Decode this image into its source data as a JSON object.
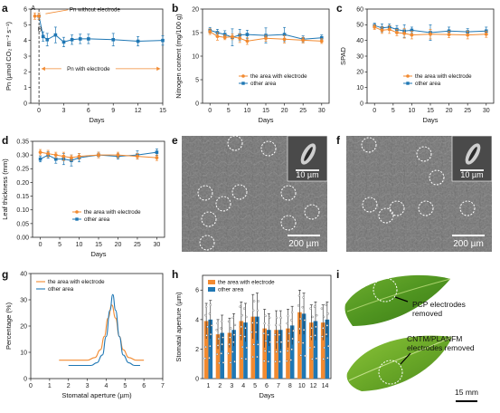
{
  "panels": {
    "a": "a",
    "b": "b",
    "c": "c",
    "d": "d",
    "e": "e",
    "f": "f",
    "g": "g",
    "h": "h",
    "i": "i"
  },
  "colors": {
    "orange": "#f28a30",
    "blue": "#1f77b4"
  },
  "micro": {
    "inset_scale": "10 µm",
    "main_scale": "200 µm"
  },
  "leaf_photos": {
    "top_label_line1": "PCP electrodes",
    "top_label_line2": "removed",
    "bottom_label_line1": "CNTM/PLANFM",
    "bottom_label_line2": "electrodes removed",
    "scale": "15 mm"
  },
  "chart_data": [
    {
      "id": "a",
      "type": "line",
      "xlabel": "Days",
      "ylabel": "Pn (µmol CO₂ m⁻² s⁻¹)",
      "xlim": [
        -1,
        15
      ],
      "ylim": [
        0,
        6
      ],
      "xticks": [
        0,
        3,
        6,
        9,
        12,
        15
      ],
      "yticks": [
        0,
        1,
        2,
        3,
        4,
        5,
        6
      ],
      "point_labels": [
        "A",
        "B"
      ],
      "annotation_top": "Pn without electrode",
      "annotation_bottom": "Pn with electrode",
      "series": [
        {
          "x": [
            -0.5,
            0
          ],
          "y": [
            5.55,
            5.55
          ],
          "color": "#f28a30",
          "err": [
            0.2,
            0.2
          ]
        },
        {
          "x": [
            0,
            0.5,
            1,
            2,
            3,
            4,
            5,
            6,
            9,
            12,
            15
          ],
          "y": [
            5.55,
            4.25,
            4.05,
            4.35,
            3.9,
            4.05,
            4.1,
            4.1,
            4.05,
            3.95,
            4.0
          ],
          "color": "#1f77b4",
          "err": [
            0.2,
            0.3,
            0.4,
            0.5,
            0.3,
            0.3,
            0.3,
            0.3,
            0.4,
            0.3,
            0.3
          ]
        }
      ]
    },
    {
      "id": "b",
      "type": "line",
      "xlabel": "Days",
      "ylabel": "Nitrogen content (mg/100 g)",
      "xlim": [
        -2,
        32
      ],
      "ylim": [
        0,
        20
      ],
      "xticks": [
        0,
        5,
        10,
        15,
        20,
        25,
        30
      ],
      "yticks": [
        0,
        5,
        10,
        15,
        20
      ],
      "series": [
        {
          "name": "the area with electrode",
          "color": "#f28a30",
          "x": [
            0,
            2,
            4,
            6,
            8,
            10,
            15,
            20,
            25,
            30
          ],
          "y": [
            15.2,
            14.2,
            14.0,
            14.1,
            13.8,
            13.2,
            13.8,
            13.6,
            13.4,
            13.2
          ],
          "err": [
            0.6,
            0.8,
            0.5,
            0.6,
            0.9,
            0.7,
            0.6,
            0.8,
            0.6,
            0.5
          ]
        },
        {
          "name": "other area",
          "color": "#1f77b4",
          "x": [
            0,
            2,
            4,
            6,
            8,
            10,
            15,
            20,
            25,
            30
          ],
          "y": [
            15.5,
            15.0,
            14.6,
            14.0,
            14.5,
            14.6,
            14.4,
            14.6,
            13.6,
            13.9
          ],
          "err": [
            0.6,
            0.7,
            0.8,
            1.8,
            1.2,
            0.9,
            1.6,
            1.5,
            0.7,
            0.6
          ]
        }
      ]
    },
    {
      "id": "c",
      "type": "line",
      "xlabel": "Days",
      "ylabel": "SPAD",
      "xlim": [
        -2,
        32
      ],
      "ylim": [
        0,
        60
      ],
      "xticks": [
        0,
        5,
        10,
        15,
        20,
        25,
        30
      ],
      "yticks": [
        0,
        10,
        20,
        30,
        40,
        50,
        60
      ],
      "series": [
        {
          "name": "the area with electrode",
          "color": "#f28a30",
          "x": [
            0,
            2,
            4,
            6,
            8,
            10,
            15,
            20,
            25,
            30
          ],
          "y": [
            48.5,
            46.5,
            47.0,
            45.0,
            44.5,
            43.5,
            44.0,
            43.8,
            43.5,
            44.0
          ],
          "err": [
            1.5,
            2.0,
            2.5,
            2.0,
            3.0,
            2.5,
            3.0,
            2.0,
            2.5,
            2.0
          ]
        },
        {
          "name": "other area",
          "color": "#1f77b4",
          "x": [
            0,
            2,
            4,
            6,
            8,
            10,
            15,
            20,
            25,
            30
          ],
          "y": [
            49.5,
            48.0,
            48.5,
            47.0,
            46.0,
            46.5,
            45.0,
            46.0,
            45.5,
            46.0
          ],
          "err": [
            1.5,
            2.5,
            2.0,
            2.5,
            4.0,
            2.0,
            5.0,
            2.5,
            2.0,
            2.5
          ]
        }
      ]
    },
    {
      "id": "d",
      "type": "line",
      "xlabel": "Days",
      "ylabel": "Leaf thickness (mm)",
      "xlim": [
        -2,
        32
      ],
      "ylim": [
        0,
        0.35
      ],
      "xticks": [
        0,
        5,
        10,
        15,
        20,
        25,
        30
      ],
      "yticks": [
        0.0,
        0.05,
        0.1,
        0.15,
        0.2,
        0.25,
        0.3,
        0.35
      ],
      "ytick_labels": [
        "0.00",
        "0.05",
        "0.10",
        "0.15",
        "0.20",
        "0.25",
        "0.30",
        "0.35"
      ],
      "series": [
        {
          "name": "the area with electrode",
          "color": "#f28a30",
          "x": [
            0,
            2,
            4,
            6,
            8,
            10,
            15,
            20,
            25,
            30
          ],
          "y": [
            0.31,
            0.305,
            0.3,
            0.295,
            0.29,
            0.295,
            0.3,
            0.3,
            0.295,
            0.29
          ],
          "err": [
            0.01,
            0.012,
            0.01,
            0.015,
            0.01,
            0.01,
            0.01,
            0.01,
            0.01,
            0.01
          ]
        },
        {
          "name": "other area",
          "color": "#1f77b4",
          "x": [
            0,
            2,
            4,
            6,
            8,
            10,
            15,
            20,
            25,
            30
          ],
          "y": [
            0.285,
            0.3,
            0.285,
            0.285,
            0.28,
            0.29,
            0.3,
            0.295,
            0.3,
            0.31
          ],
          "err": [
            0.01,
            0.012,
            0.015,
            0.02,
            0.02,
            0.015,
            0.01,
            0.01,
            0.015,
            0.012
          ]
        }
      ]
    },
    {
      "id": "g",
      "type": "line",
      "xlabel": "Stomatal aperture (µm)",
      "ylabel": "Percentage (%)",
      "xlim": [
        0,
        7
      ],
      "ylim": [
        0,
        40
      ],
      "xticks": [
        0,
        1,
        2,
        3,
        4,
        5,
        6,
        7
      ],
      "yticks": [
        0,
        10,
        20,
        30,
        40
      ],
      "series": [
        {
          "name": "the area with electrode",
          "color": "#f28a30",
          "x": [
            1.5,
            3.0,
            3.4,
            3.7,
            3.9,
            4.1,
            4.3,
            4.5,
            4.7,
            4.9,
            5.2,
            5.6,
            6.0
          ],
          "y": [
            7,
            7,
            8,
            11,
            16,
            23,
            28,
            23,
            16,
            11,
            8,
            7,
            7
          ]
        },
        {
          "name": "other area",
          "color": "#1f77b4",
          "x": [
            2.0,
            3.2,
            3.5,
            3.8,
            4.0,
            4.2,
            4.35,
            4.5,
            4.7,
            4.9,
            5.2,
            5.5,
            5.8
          ],
          "y": [
            5,
            5,
            6,
            9,
            16,
            26,
            32,
            26,
            16,
            9,
            6,
            5,
            5
          ]
        }
      ]
    },
    {
      "id": "h",
      "type": "bar",
      "xlabel": "Days",
      "ylabel": "Stomatal aperture (µm)",
      "ylim": [
        0,
        7
      ],
      "yticks": [
        0,
        2,
        4,
        6
      ],
      "categories": [
        "1",
        "2",
        "3",
        "4",
        "5",
        "6",
        "7",
        "8",
        "10",
        "12",
        "14"
      ],
      "series": [
        {
          "name": "the area with electrode",
          "color": "#f28a30",
          "values": [
            3.9,
            3.0,
            3.1,
            3.9,
            4.2,
            3.4,
            3.3,
            3.4,
            4.5,
            3.8,
            3.8
          ],
          "err": [
            1.2,
            1.0,
            1.0,
            1.3,
            1.5,
            1.3,
            1.3,
            1.3,
            1.5,
            1.2,
            1.2
          ]
        },
        {
          "name": "other area",
          "color": "#1f77b4",
          "values": [
            4.0,
            3.1,
            3.3,
            3.8,
            4.2,
            3.3,
            3.3,
            3.6,
            4.4,
            3.9,
            4.0
          ],
          "err": [
            1.3,
            1.2,
            1.1,
            1.3,
            1.6,
            1.1,
            1.3,
            1.3,
            1.4,
            1.3,
            1.2
          ]
        }
      ]
    }
  ]
}
